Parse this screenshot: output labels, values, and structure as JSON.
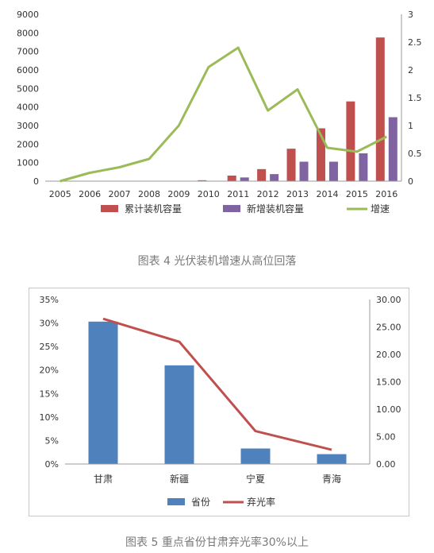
{
  "captions": {
    "figure4": "图表 4 光伏装机增速从高位回落",
    "figure5": "图表 5 重点省份甘肃弃光率30%以上"
  },
  "chart_data": [
    {
      "type": "bar",
      "categories": [
        "2005",
        "2006",
        "2007",
        "2008",
        "2009",
        "2010",
        "2011",
        "2012",
        "2013",
        "2014",
        "2015",
        "2016"
      ],
      "series": [
        {
          "name": "累计装机容量",
          "kind": "bar",
          "axis": "left",
          "color": "#c0504d",
          "values": [
            0,
            0,
            0,
            0,
            0,
            50,
            300,
            650,
            1750,
            2850,
            4300,
            7750
          ]
        },
        {
          "name": "新增装机容量",
          "kind": "bar",
          "axis": "left",
          "color": "#8064a2",
          "values": [
            0,
            0,
            0,
            0,
            0,
            0,
            200,
            380,
            1050,
            1050,
            1500,
            3450
          ]
        },
        {
          "name": "增速",
          "kind": "line",
          "axis": "right",
          "color": "#9bbb59",
          "values": [
            0,
            0.15,
            0.25,
            0.4,
            1.0,
            2.05,
            2.4,
            1.27,
            1.65,
            0.6,
            0.53,
            0.8
          ]
        }
      ],
      "yLeft": {
        "min": 0,
        "max": 9000,
        "ticks": [
          "9000",
          "8000",
          "7000",
          "6000",
          "5000",
          "4000",
          "3000",
          "2000",
          "1000",
          "0"
        ]
      },
      "yRight": {
        "min": 0,
        "max": 3,
        "ticks": [
          "3",
          "2.5",
          "2",
          "1.5",
          "1",
          "0.5",
          "0"
        ]
      },
      "legend": "bottom"
    },
    {
      "type": "bar",
      "categories": [
        "甘肃",
        "新疆",
        "宁夏",
        "青海"
      ],
      "series": [
        {
          "name": "省份",
          "kind": "bar",
          "axis": "left",
          "color": "#4f81bd",
          "values": [
            0.303,
            0.21,
            0.033,
            0.021
          ]
        },
        {
          "name": "弃光率",
          "kind": "line",
          "axis": "right",
          "color": "#c0504d",
          "values": [
            26.5,
            22.3,
            6.0,
            2.6
          ]
        }
      ],
      "yLeft": {
        "min": 0,
        "max": 0.35,
        "ticks": [
          "35%",
          "30%",
          "25%",
          "20%",
          "15%",
          "10%",
          "5%",
          "0%"
        ]
      },
      "yRight": {
        "min": 0,
        "max": 30,
        "ticks": [
          "30.00",
          "25.00",
          "20.00",
          "15.00",
          "10.00",
          "5.00",
          "0.00"
        ]
      },
      "legend": "bottom"
    }
  ]
}
